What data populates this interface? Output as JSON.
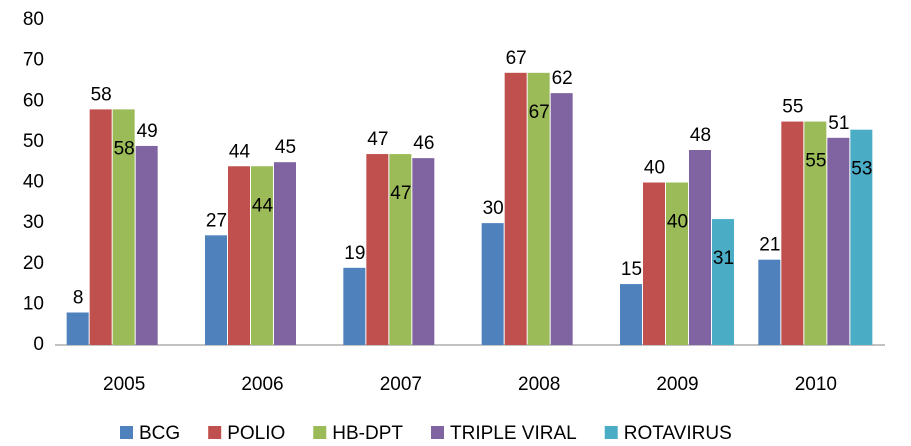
{
  "chart_data": {
    "type": "bar",
    "categories": [
      "2005",
      "2006",
      "2007",
      "2008",
      "2009",
      "2010"
    ],
    "series": [
      {
        "name": "BCG",
        "color": "#4f81bd",
        "values": [
          8,
          27,
          19,
          30,
          15,
          21
        ]
      },
      {
        "name": "POLIO",
        "color": "#c0504d",
        "values": [
          58,
          44,
          47,
          67,
          40,
          55
        ]
      },
      {
        "name": "HB-DPT",
        "color": "#9bbb59",
        "values": [
          58,
          44,
          47,
          67,
          40,
          55
        ]
      },
      {
        "name": "TRIPLE VIRAL",
        "color": "#8064a2",
        "values": [
          49,
          45,
          46,
          62,
          48,
          51
        ]
      },
      {
        "name": "ROTAVIRUS",
        "color": "#4bacc6",
        "values": [
          null,
          null,
          null,
          null,
          31,
          53
        ]
      }
    ],
    "ylim": [
      0,
      80
    ],
    "yticks": [
      0,
      10,
      20,
      30,
      40,
      50,
      60,
      70,
      80
    ],
    "grid": false,
    "legend": "bottom"
  }
}
